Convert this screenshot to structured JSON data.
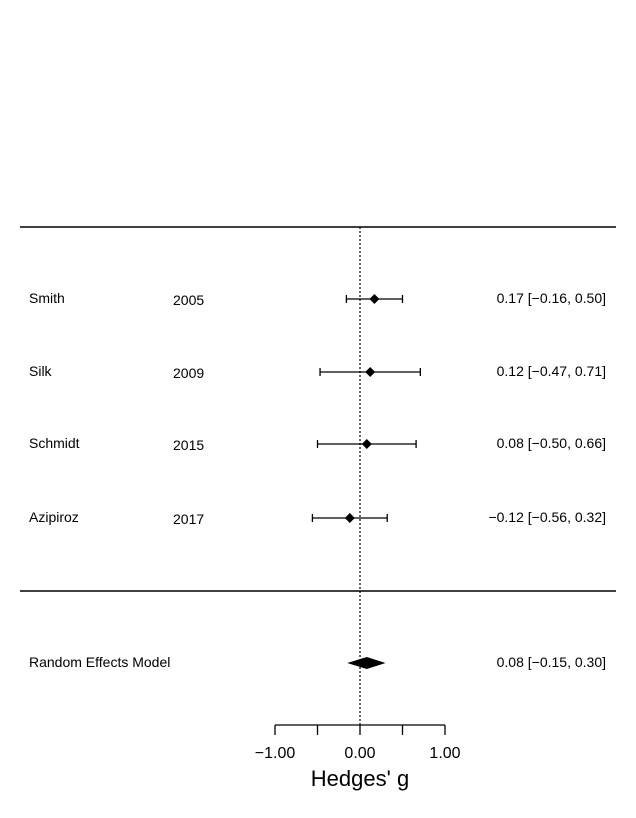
{
  "chart_data": {
    "type": "forest",
    "xlabel": "Hedges' g",
    "xlim": [
      -1.0,
      1.0
    ],
    "xticks": [
      -1.0,
      -0.5,
      0.0,
      0.5,
      1.0
    ],
    "xtick_labels": [
      "−1.00",
      "",
      "0.00",
      "",
      "1.00"
    ],
    "reference_line": 0,
    "studies": [
      {
        "author": "Smith",
        "year": "2005",
        "estimate": 0.17,
        "lower": -0.16,
        "upper": 0.5,
        "label": "0.17 [−0.16, 0.50]"
      },
      {
        "author": "Silk",
        "year": "2009",
        "estimate": 0.12,
        "lower": -0.47,
        "upper": 0.71,
        "label": "0.12 [−0.47, 0.71]"
      },
      {
        "author": "Schmidt",
        "year": "2015",
        "estimate": 0.08,
        "lower": -0.5,
        "upper": 0.66,
        "label": "0.08 [−0.50, 0.66]"
      },
      {
        "author": "Azipiroz",
        "year": "2017",
        "estimate": -0.12,
        "lower": -0.56,
        "upper": 0.32,
        "label": "−0.12 [−0.56, 0.32]"
      }
    ],
    "summary": {
      "label_name": "Random Effects Model",
      "estimate": 0.08,
      "lower": -0.15,
      "upper": 0.3,
      "label": "0.08 [−0.15, 0.30]"
    },
    "colors": {
      "marks": "#000000",
      "background": "#ffffff"
    }
  }
}
